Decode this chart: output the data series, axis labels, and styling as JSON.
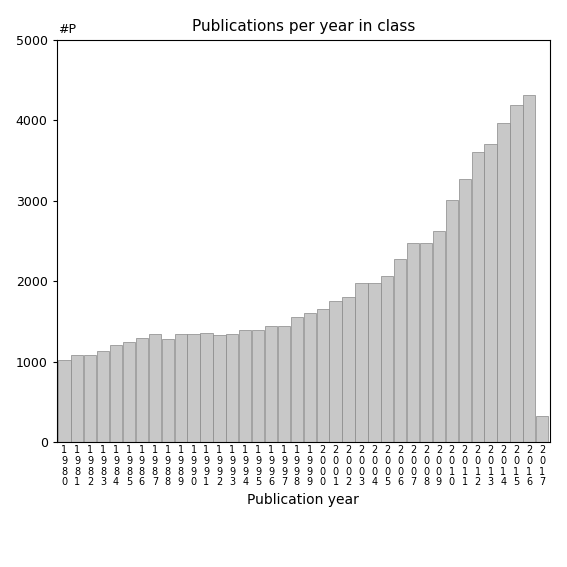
{
  "title": "Publications per year in class",
  "xlabel": "Publication year",
  "ylabel": "#P",
  "bar_color": "#c8c8c8",
  "bar_edge_color": "#888888",
  "ylim": [
    0,
    5000
  ],
  "yticks": [
    0,
    1000,
    2000,
    3000,
    4000,
    5000
  ],
  "years": [
    "1980",
    "1981",
    "1982",
    "1983",
    "1984",
    "1985",
    "1986",
    "1987",
    "1988",
    "1989",
    "1990",
    "1991",
    "1992",
    "1993",
    "1994",
    "1995",
    "1996",
    "1997",
    "1998",
    "1999",
    "2000",
    "2001",
    "2002",
    "2003",
    "2004",
    "2005",
    "2006",
    "2007",
    "2008",
    "2009",
    "2010",
    "2011",
    "2012",
    "2013",
    "2014",
    "2015",
    "2016",
    "2017"
  ],
  "values": [
    1020,
    1080,
    1080,
    1130,
    1210,
    1250,
    1300,
    1350,
    1280,
    1350,
    1350,
    1360,
    1330,
    1350,
    1390,
    1400,
    1450,
    1450,
    1560,
    1600,
    1650,
    1750,
    1800,
    1980,
    1980,
    2060,
    2280,
    2470,
    2480,
    2630,
    3010,
    3270,
    3610,
    3710,
    3960,
    4190,
    4310,
    330
  ],
  "background_color": "#ffffff",
  "figsize": [
    5.67,
    5.67
  ],
  "dpi": 100,
  "title_fontsize": 11,
  "xlabel_fontsize": 10,
  "tick_label_fontsize": 7,
  "ytick_fontsize": 9
}
